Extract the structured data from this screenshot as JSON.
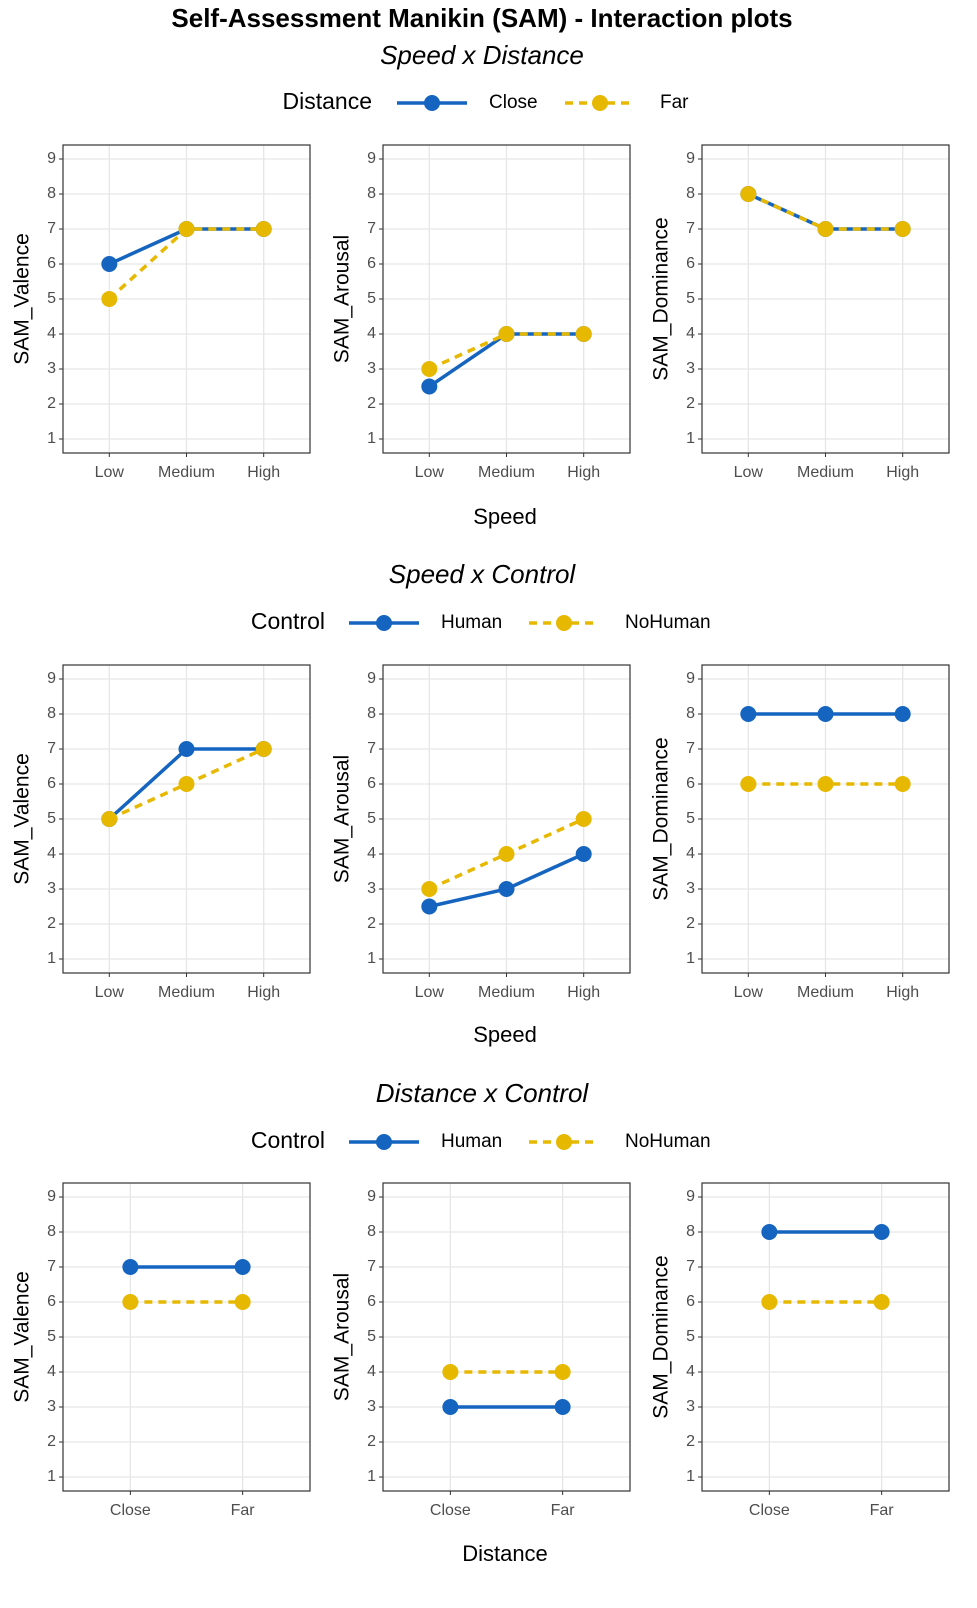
{
  "title": "Self-Assessment Manikin (SAM) - Interaction plots",
  "sections": [
    {
      "subtitle": "Speed x Distance",
      "legend_title": "Distance",
      "x_label": "Speed"
    },
    {
      "subtitle": "Speed x Control",
      "legend_title": "Control",
      "x_label": "Speed"
    },
    {
      "subtitle": "Distance x Control",
      "legend_title": "Control",
      "x_label": "Distance"
    }
  ],
  "chart_data": [
    {
      "type": "line",
      "y_label": "SAM_Valence",
      "categories": [
        "Low",
        "Medium",
        "High"
      ],
      "ylim": [
        0.6,
        9.4
      ],
      "yticks": [
        1,
        2,
        3,
        4,
        5,
        6,
        7,
        8,
        9
      ],
      "grid": true,
      "series": [
        {
          "name": "Close",
          "color": "#1565c0",
          "line_style": "solid",
          "values": [
            6,
            7,
            7
          ]
        },
        {
          "name": "Far",
          "color": "#e7b800",
          "line_style": "dashed",
          "values": [
            5,
            7,
            7
          ]
        }
      ]
    },
    {
      "type": "line",
      "y_label": "SAM_Arousal",
      "categories": [
        "Low",
        "Medium",
        "High"
      ],
      "ylim": [
        0.6,
        9.4
      ],
      "yticks": [
        1,
        2,
        3,
        4,
        5,
        6,
        7,
        8,
        9
      ],
      "grid": true,
      "series": [
        {
          "name": "Close",
          "color": "#1565c0",
          "line_style": "solid",
          "values": [
            2.5,
            4,
            4
          ]
        },
        {
          "name": "Far",
          "color": "#e7b800",
          "line_style": "dashed",
          "values": [
            3,
            4,
            4
          ]
        }
      ]
    },
    {
      "type": "line",
      "y_label": "SAM_Dominance",
      "categories": [
        "Low",
        "Medium",
        "High"
      ],
      "ylim": [
        0.6,
        9.4
      ],
      "yticks": [
        1,
        2,
        3,
        4,
        5,
        6,
        7,
        8,
        9
      ],
      "grid": true,
      "series": [
        {
          "name": "Close",
          "color": "#1565c0",
          "line_style": "solid",
          "values": [
            8,
            7,
            7
          ]
        },
        {
          "name": "Far",
          "color": "#e7b800",
          "line_style": "dashed",
          "values": [
            8,
            7,
            7
          ]
        }
      ]
    },
    {
      "type": "line",
      "y_label": "SAM_Valence",
      "categories": [
        "Low",
        "Medium",
        "High"
      ],
      "ylim": [
        0.6,
        9.4
      ],
      "yticks": [
        1,
        2,
        3,
        4,
        5,
        6,
        7,
        8,
        9
      ],
      "grid": true,
      "series": [
        {
          "name": "Human",
          "color": "#1565c0",
          "line_style": "solid",
          "values": [
            5,
            7,
            7
          ]
        },
        {
          "name": "NoHuman",
          "color": "#e7b800",
          "line_style": "dashed",
          "values": [
            5,
            6,
            7
          ]
        }
      ]
    },
    {
      "type": "line",
      "y_label": "SAM_Arousal",
      "categories": [
        "Low",
        "Medium",
        "High"
      ],
      "ylim": [
        0.6,
        9.4
      ],
      "yticks": [
        1,
        2,
        3,
        4,
        5,
        6,
        7,
        8,
        9
      ],
      "grid": true,
      "series": [
        {
          "name": "Human",
          "color": "#1565c0",
          "line_style": "solid",
          "values": [
            2.5,
            3,
            4
          ]
        },
        {
          "name": "NoHuman",
          "color": "#e7b800",
          "line_style": "dashed",
          "values": [
            3,
            4,
            5
          ]
        }
      ]
    },
    {
      "type": "line",
      "y_label": "SAM_Dominance",
      "categories": [
        "Low",
        "Medium",
        "High"
      ],
      "ylim": [
        0.6,
        9.4
      ],
      "yticks": [
        1,
        2,
        3,
        4,
        5,
        6,
        7,
        8,
        9
      ],
      "grid": true,
      "series": [
        {
          "name": "Human",
          "color": "#1565c0",
          "line_style": "solid",
          "values": [
            8,
            8,
            8
          ]
        },
        {
          "name": "NoHuman",
          "color": "#e7b800",
          "line_style": "dashed",
          "values": [
            6,
            6,
            6
          ]
        }
      ]
    },
    {
      "type": "line",
      "y_label": "SAM_Valence",
      "categories": [
        "Close",
        "Far"
      ],
      "ylim": [
        0.6,
        9.4
      ],
      "yticks": [
        1,
        2,
        3,
        4,
        5,
        6,
        7,
        8,
        9
      ],
      "grid": true,
      "series": [
        {
          "name": "Human",
          "color": "#1565c0",
          "line_style": "solid",
          "values": [
            7,
            7
          ]
        },
        {
          "name": "NoHuman",
          "color": "#e7b800",
          "line_style": "dashed",
          "values": [
            6,
            6
          ]
        }
      ]
    },
    {
      "type": "line",
      "y_label": "SAM_Arousal",
      "categories": [
        "Close",
        "Far"
      ],
      "ylim": [
        0.6,
        9.4
      ],
      "yticks": [
        1,
        2,
        3,
        4,
        5,
        6,
        7,
        8,
        9
      ],
      "grid": true,
      "series": [
        {
          "name": "Human",
          "color": "#1565c0",
          "line_style": "solid",
          "values": [
            3,
            3
          ]
        },
        {
          "name": "NoHuman",
          "color": "#e7b800",
          "line_style": "dashed",
          "values": [
            4,
            4
          ]
        }
      ]
    },
    {
      "type": "line",
      "y_label": "SAM_Dominance",
      "categories": [
        "Close",
        "Far"
      ],
      "ylim": [
        0.6,
        9.4
      ],
      "yticks": [
        1,
        2,
        3,
        4,
        5,
        6,
        7,
        8,
        9
      ],
      "grid": true,
      "series": [
        {
          "name": "Human",
          "color": "#1565c0",
          "line_style": "solid",
          "values": [
            8,
            8
          ]
        },
        {
          "name": "NoHuman",
          "color": "#e7b800",
          "line_style": "dashed",
          "values": [
            6,
            6
          ]
        }
      ]
    }
  ]
}
